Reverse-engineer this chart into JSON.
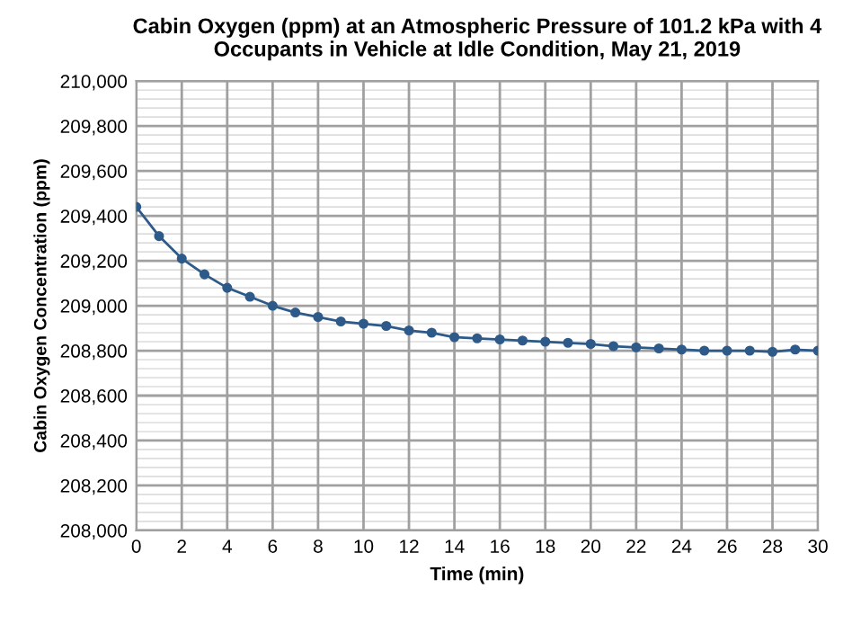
{
  "chart_data": {
    "type": "line",
    "title": "Cabin Oxygen (ppm) at an Atmospheric Pressure of 101.2 kPa with 4\nOccupants in Vehicle at Idle Condition, May 21, 2019",
    "xlabel": "Time (min)",
    "ylabel": "Cabin Oxygen Concentration (ppm)",
    "x": [
      0,
      1,
      2,
      3,
      4,
      5,
      6,
      7,
      8,
      9,
      10,
      11,
      12,
      13,
      14,
      15,
      16,
      17,
      18,
      19,
      20,
      21,
      22,
      23,
      24,
      25,
      26,
      27,
      28,
      29,
      30
    ],
    "series": [
      {
        "color": "#2e5a8a",
        "values": [
          209440,
          209310,
          209210,
          209140,
          209080,
          209040,
          209000,
          208970,
          208950,
          208930,
          208920,
          208910,
          208890,
          208880,
          208860,
          208855,
          208850,
          208845,
          208840,
          208835,
          208830,
          208820,
          208815,
          208810,
          208805,
          208800,
          208800,
          208800,
          208795,
          208805,
          208800
        ]
      }
    ],
    "xlim": [
      0,
      30
    ],
    "xticks": [
      0,
      2,
      4,
      6,
      8,
      10,
      12,
      14,
      16,
      18,
      20,
      22,
      24,
      26,
      28,
      30
    ],
    "ylim": [
      208000,
      210000
    ],
    "yticks": [
      {
        "value": 208000,
        "label": "208,000"
      },
      {
        "value": 208200,
        "label": "208,200"
      },
      {
        "value": 208400,
        "label": "208,400"
      },
      {
        "value": 208600,
        "label": "208,600"
      },
      {
        "value": 208800,
        "label": "208,800"
      },
      {
        "value": 209000,
        "label": "209,000"
      },
      {
        "value": 209200,
        "label": "209,200"
      },
      {
        "value": 209400,
        "label": "209,400"
      },
      {
        "value": 209600,
        "label": "209,600"
      },
      {
        "value": 209800,
        "label": "209,800"
      },
      {
        "value": 210000,
        "label": "210,000"
      }
    ],
    "grid": true,
    "marker": "circle",
    "line_style": "solid",
    "legend": false
  }
}
